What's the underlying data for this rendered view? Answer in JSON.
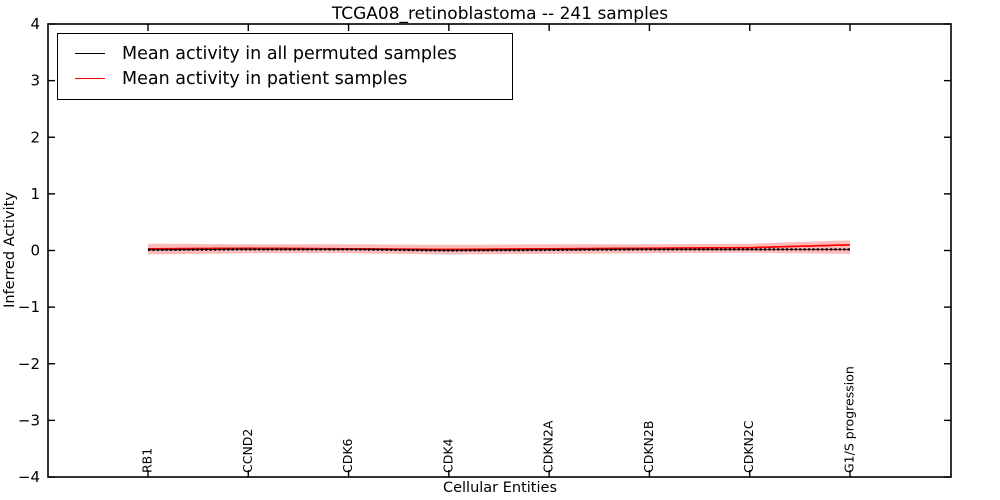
{
  "figure": {
    "title": "TCGA08_retinoblastoma -- 241 samples",
    "xlabel": "Cellular Entities",
    "ylabel": "Inferred Activity"
  },
  "legend": {
    "position": "upper left",
    "entries": [
      {
        "label": "Mean activity in all permuted samples",
        "color": "#000000"
      },
      {
        "label": "Mean activity in patient samples",
        "color": "#ff0000"
      }
    ]
  },
  "chart_data": {
    "type": "line",
    "title": "TCGA08_retinoblastoma -- 241 samples",
    "xlabel": "Cellular Entities",
    "ylabel": "Inferred Activity",
    "ylim": [
      -4,
      4
    ],
    "yticks": [
      -4,
      -3,
      -2,
      -1,
      0,
      1,
      2,
      3,
      4
    ],
    "ytick_labels": [
      "−4",
      "−3",
      "−2",
      "−1",
      "0",
      "1",
      "2",
      "3",
      "4"
    ],
    "categories": [
      "RB1",
      "CCND2",
      "CDK6",
      "CDK4",
      "CDKN2A",
      "CDKN2B",
      "CDKN2C",
      "G1/S progression"
    ],
    "grid": false,
    "legend_position": "upper left",
    "n_points": 161,
    "series": [
      {
        "name": "Mean activity in all permuted samples",
        "color": "#000000",
        "style": "dashed-markers",
        "values": [
          0.01,
          0.02,
          0.02,
          0.0,
          0.01,
          0.02,
          0.02,
          0.02
        ]
      },
      {
        "name": "Mean activity in patient samples",
        "color": "#ff0000",
        "style": "solid",
        "values": [
          0.03,
          0.04,
          0.03,
          0.02,
          0.03,
          0.04,
          0.05,
          0.1
        ]
      }
    ],
    "band": {
      "name": "patient samples spread",
      "color": "#ff0000",
      "opacity": 0.27,
      "upper": [
        0.12,
        0.11,
        0.11,
        0.1,
        0.11,
        0.11,
        0.12,
        0.18
      ],
      "lower": [
        -0.07,
        -0.05,
        -0.05,
        -0.07,
        -0.06,
        -0.05,
        -0.04,
        -0.06
      ]
    }
  }
}
